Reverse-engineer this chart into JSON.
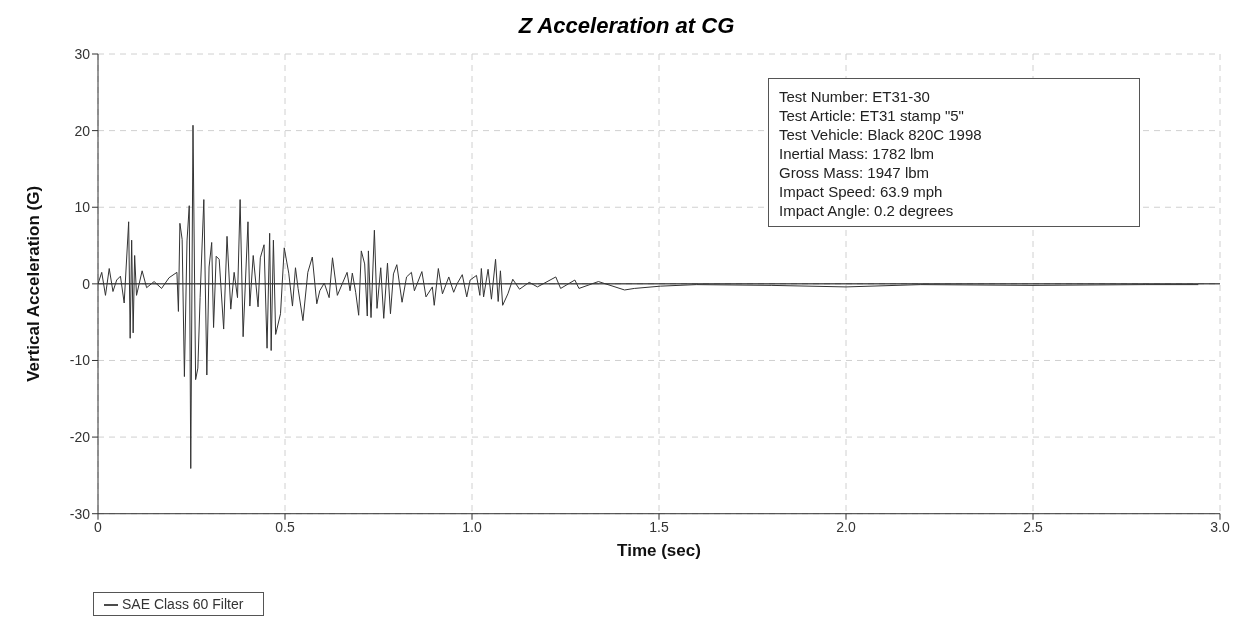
{
  "chart_data": {
    "type": "line",
    "title": "Z Acceleration at CG",
    "xlabel": "Time (sec)",
    "ylabel": "Vertical Acceleration (G)",
    "xlim": [
      0,
      3.0
    ],
    "xticks": [
      0,
      {
        "value": 0.5,
        "label": "0.5"
      },
      {
        "value": 1,
        "label": "1.0"
      },
      {
        "value": 1.5,
        "label": "1.5"
      },
      {
        "value": 2,
        "label": "2.0"
      },
      {
        "value": 2.5,
        "label": "2.5"
      },
      {
        "value": 3,
        "label": "3.0"
      }
    ],
    "ylim": [
      -30,
      30
    ],
    "yticks": [
      -30,
      -20,
      -10,
      0,
      10,
      20,
      30
    ],
    "grid": true,
    "legend": "bottom left",
    "line_style": "solid",
    "ref_lines": [
      {
        "axis": "y",
        "value": 0,
        "color": "#000000"
      }
    ],
    "annotations": [
      "Test Number: ET31-30",
      "Test Article: ET31 stamp \"5\"",
      "Test Vehicle: Black 820C 1998",
      "Inertial Mass: 1782 lbm",
      "Gross Mass: 1947 lbm",
      "Impact Speed: 63.9 mph",
      "Impact Angle: 0.2 degrees"
    ],
    "series": [
      {
        "name": "SAE Class 60 Filter",
        "color": "#333333",
        "x": [
          0,
          0.01,
          0.02,
          0.03,
          0.04,
          0.05,
          0.06,
          0.07,
          0.082,
          0.086,
          0.09,
          0.094,
          0.098,
          0.103,
          0.118,
          0.13,
          0.15,
          0.17,
          0.19,
          0.211,
          0.215,
          0.219,
          0.225,
          0.231,
          0.238,
          0.244,
          0.248,
          0.254,
          0.261,
          0.267,
          0.273,
          0.283,
          0.291,
          0.297,
          0.304,
          0.309,
          0.316,
          0.324,
          0.336,
          0.345,
          0.355,
          0.364,
          0.373,
          0.38,
          0.388,
          0.401,
          0.406,
          0.415,
          0.428,
          0.434,
          0.444,
          0.452,
          0.459,
          0.463,
          0.469,
          0.475,
          0.488,
          0.498,
          0.51,
          0.52,
          0.528,
          0.535,
          0.548,
          0.561,
          0.573,
          0.585,
          0.593,
          0.605,
          0.618,
          0.627,
          0.64,
          0.653,
          0.666,
          0.674,
          0.68,
          0.689,
          0.697,
          0.704,
          0.713,
          0.72,
          0.723,
          0.73,
          0.739,
          0.746,
          0.756,
          0.764,
          0.774,
          0.782,
          0.79,
          0.799,
          0.813,
          0.825,
          0.838,
          0.846,
          0.866,
          0.877,
          0.894,
          0.899,
          0.91,
          0.921,
          0.938,
          0.951,
          0.96,
          0.974,
          0.986,
          0.995,
          1.012,
          1.021,
          1.025,
          1.031,
          1.043,
          1.052,
          1.063,
          1.07,
          1.076,
          1.082,
          1.096,
          1.109,
          1.127,
          1.153,
          1.175,
          1.224,
          1.237,
          1.275,
          1.286,
          1.338,
          1.408,
          1.434,
          1.504,
          1.6,
          1.8,
          2.0,
          2.2,
          2.5,
          2.8,
          2.942
        ],
        "values": [
          0,
          1.5,
          -1.5,
          2,
          -1,
          0.5,
          1,
          -2.5,
          8.1,
          -7.1,
          5.7,
          -6.4,
          3.7,
          -1.5,
          1.7,
          -0.5,
          0.3,
          -0.6,
          0.8,
          1.5,
          -3.6,
          7.9,
          5.8,
          -12.1,
          5.6,
          10.2,
          -24.1,
          20.7,
          -12.5,
          -11,
          -1.8,
          11.0,
          -11.9,
          2.2,
          5.4,
          -5.7,
          3.6,
          3.2,
          -5.9,
          6.2,
          -3.3,
          1.5,
          -1.8,
          11.0,
          -6.9,
          8.1,
          -2.9,
          3.7,
          -3.0,
          3.4,
          5.1,
          -8.4,
          6.6,
          -8.7,
          5.7,
          -6.6,
          -3.9,
          4.7,
          1.4,
          -2.9,
          2.1,
          -0.6,
          -4.8,
          1.5,
          3.5,
          -2.6,
          -0.9,
          0.1,
          -1.8,
          3.4,
          -1.5,
          0,
          1.5,
          -0.9,
          1.4,
          -1.1,
          -4.1,
          4.3,
          2.6,
          -4.2,
          4.3,
          -4.4,
          7.0,
          -3.2,
          2.1,
          -4.5,
          2.7,
          -3.9,
          1.3,
          2.5,
          -2.4,
          0.9,
          1.5,
          -0.9,
          1.6,
          -1.7,
          -0.4,
          -2.8,
          2.0,
          -1.3,
          0.9,
          -1.1,
          0,
          1.2,
          -1.7,
          0.5,
          1.1,
          -1.5,
          2.0,
          -1.7,
          1.9,
          -2.0,
          3.2,
          -2.3,
          1.7,
          -2.8,
          -1.3,
          0.6,
          -0.7,
          0.2,
          -0.4,
          0.9,
          -0.6,
          0.5,
          -0.6,
          0.3,
          -0.8,
          -0.6,
          -0.3,
          -0.1,
          -0.2,
          -0.4,
          -0.1,
          -0.2,
          -0.1,
          -0.1
        ]
      }
    ]
  }
}
